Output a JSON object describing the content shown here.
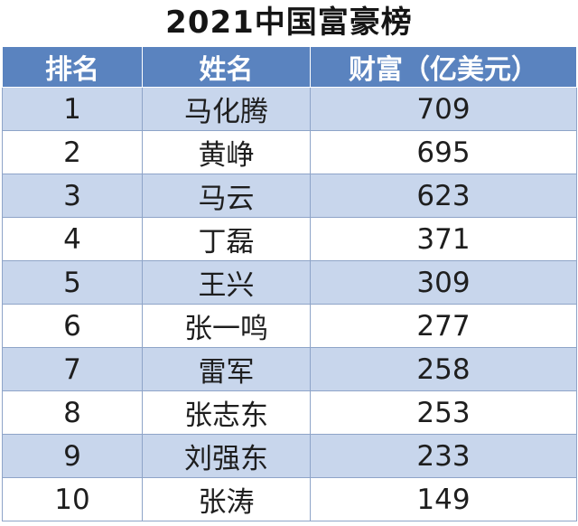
{
  "title": "2021中国富豪榜",
  "headers": [
    "排名",
    "姓名",
    "财富（亿美元）"
  ],
  "rows": [
    {
      "rank": "1",
      "name": "马化腾",
      "wealth": "709"
    },
    {
      "rank": "2",
      "name": "黄峥",
      "wealth": "695"
    },
    {
      "rank": "3",
      "name": "马云",
      "wealth": "623"
    },
    {
      "rank": "4",
      "name": "丁磊",
      "wealth": "371"
    },
    {
      "rank": "5",
      "name": "王兴",
      "wealth": "309"
    },
    {
      "rank": "6",
      "name": "张一鸣",
      "wealth": "277"
    },
    {
      "rank": "7",
      "name": "雷军",
      "wealth": "258"
    },
    {
      "rank": "8",
      "name": "张志东",
      "wealth": "253"
    },
    {
      "rank": "9",
      "name": "刘强东",
      "wealth": "233"
    },
    {
      "rank": "10",
      "name": "张涛",
      "wealth": "149"
    }
  ],
  "colors": {
    "header_bg": "#5a83bf",
    "band_bg": "#c8d6ec",
    "border": "#8ea4c8"
  }
}
